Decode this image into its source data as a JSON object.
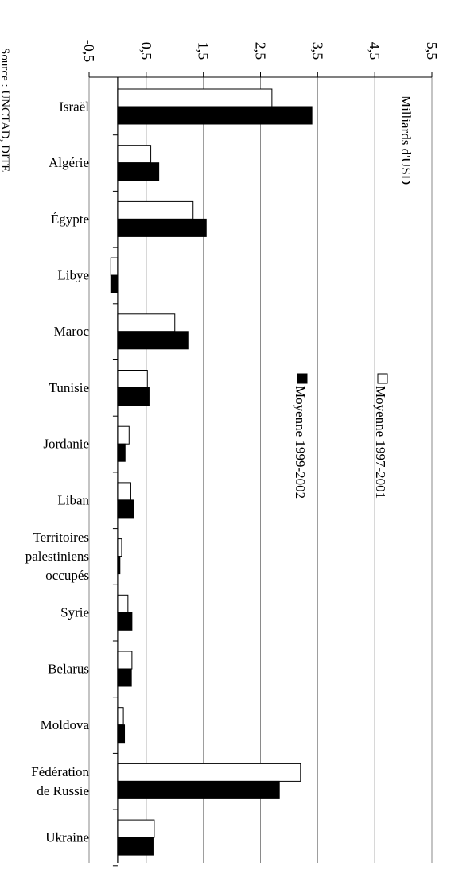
{
  "chart_data": {
    "type": "bar",
    "orientation": "horizontal",
    "unit": "Milliards d'USD",
    "source": "Source : UNCTAD, DITE",
    "value_ticks": [
      "-0,5",
      "0,5",
      "1,5",
      "2,5",
      "3,5",
      "4,5",
      "5,5"
    ],
    "xlim": [
      -0.5,
      5.5
    ],
    "grid": true,
    "legend_placement": "top-right",
    "categories": [
      [
        "Israël"
      ],
      [
        "Algérie"
      ],
      [
        "Égypte"
      ],
      [
        "Libye"
      ],
      [
        "Maroc"
      ],
      [
        "Tunisie"
      ],
      [
        "Jordanie"
      ],
      [
        "Liban"
      ],
      [
        "Territoires",
        "palestiniens",
        "occupés"
      ],
      [
        "Syrie"
      ],
      [
        "Belarus"
      ],
      [
        "Moldova"
      ],
      [
        "Fédération",
        "de Russie"
      ],
      [
        "Ukraine"
      ]
    ],
    "series": [
      {
        "name": "Moyenne 1997-2001",
        "color": "#ffffff",
        "values": [
          2.7,
          0.58,
          1.32,
          -0.12,
          1.0,
          0.52,
          0.2,
          0.23,
          0.07,
          0.18,
          0.25,
          0.1,
          3.2,
          0.64
        ]
      },
      {
        "name": "Moyenne 1999-2002",
        "color": "#000000",
        "values": [
          3.4,
          0.72,
          1.55,
          -0.12,
          1.23,
          0.55,
          0.13,
          0.28,
          0.04,
          0.25,
          0.24,
          0.12,
          2.83,
          0.62
        ]
      }
    ]
  }
}
